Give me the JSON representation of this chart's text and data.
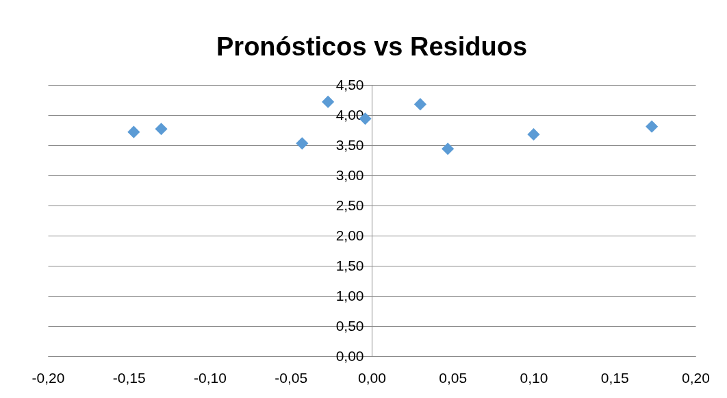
{
  "chart_data": {
    "type": "scatter",
    "title": "Pronósticos vs Residuos",
    "x": [
      -0.147,
      -0.13,
      -0.043,
      -0.027,
      -0.004,
      0.03,
      0.047,
      0.1,
      0.173
    ],
    "values": [
      3.72,
      3.77,
      3.53,
      4.22,
      3.94,
      4.18,
      3.44,
      3.68,
      3.81
    ],
    "color": "#5b9bd5",
    "marker": "diamond",
    "xlim": [
      -0.2,
      0.2
    ],
    "ylim": [
      0,
      4.5
    ],
    "xticks": [
      {
        "value": -0.2,
        "label": "-0,20"
      },
      {
        "value": -0.15,
        "label": "-0,15"
      },
      {
        "value": -0.1,
        "label": "-0,10"
      },
      {
        "value": -0.05,
        "label": "-0,05"
      },
      {
        "value": 0,
        "label": "0,00"
      },
      {
        "value": 0.05,
        "label": "0,05"
      },
      {
        "value": 0.1,
        "label": "0,10"
      },
      {
        "value": 0.15,
        "label": "0,15"
      },
      {
        "value": 0.2,
        "label": "0,20"
      }
    ],
    "yticks": [
      {
        "value": 0,
        "label": "0,00"
      },
      {
        "value": 0.5,
        "label": "0,50"
      },
      {
        "value": 1,
        "label": "1,00"
      },
      {
        "value": 1.5,
        "label": "1,50"
      },
      {
        "value": 2,
        "label": "2,00"
      },
      {
        "value": 2.5,
        "label": "2,50"
      },
      {
        "value": 3,
        "label": "3,00"
      },
      {
        "value": 3.5,
        "label": "3,50"
      },
      {
        "value": 4,
        "label": "4,00"
      },
      {
        "value": 4.5,
        "label": "4,50"
      }
    ],
    "grid": "y"
  }
}
